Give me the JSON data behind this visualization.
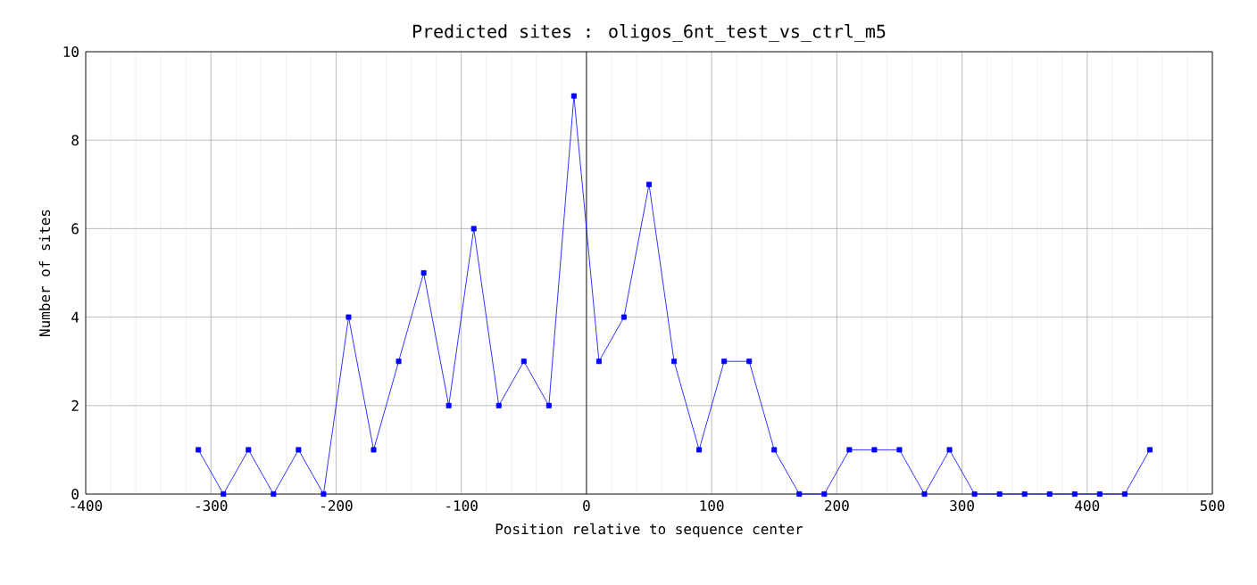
{
  "chart_data": {
    "type": "line",
    "title": "Predicted sites : oligos_6nt_test_vs_ctrl_m5",
    "xlabel": "Position relative to sequence center",
    "ylabel": "Number of sites",
    "x": [
      -310,
      -290,
      -270,
      -250,
      -230,
      -210,
      -190,
      -170,
      -150,
      -130,
      -110,
      -90,
      -70,
      -50,
      -30,
      -10,
      10,
      30,
      50,
      70,
      90,
      110,
      130,
      150,
      170,
      190,
      210,
      230,
      250,
      270,
      290,
      310,
      330,
      350,
      370,
      390,
      410,
      430,
      450
    ],
    "series": [
      {
        "color": "#0000ff",
        "values": [
          1,
          0,
          1,
          0,
          1,
          0,
          4,
          1,
          3,
          5,
          2,
          6,
          2,
          3,
          2,
          9,
          3,
          4,
          7,
          3,
          1,
          3,
          3,
          1,
          0,
          0,
          1,
          1,
          1,
          0,
          1,
          0,
          0,
          0,
          0,
          0,
          0,
          0,
          1
        ]
      }
    ],
    "xlim": [
      -400,
      500
    ],
    "xticks": [
      -400,
      -300,
      -200,
      -100,
      0,
      100,
      200,
      300,
      400,
      500
    ],
    "ylim": [
      0,
      10
    ],
    "yticks": [
      0,
      2,
      4,
      6,
      8,
      10
    ],
    "ref_lines": [
      {
        "axis": "x",
        "value": 0,
        "color": "#000000"
      }
    ],
    "grid": true,
    "marker": "square",
    "line_style": "solid"
  }
}
